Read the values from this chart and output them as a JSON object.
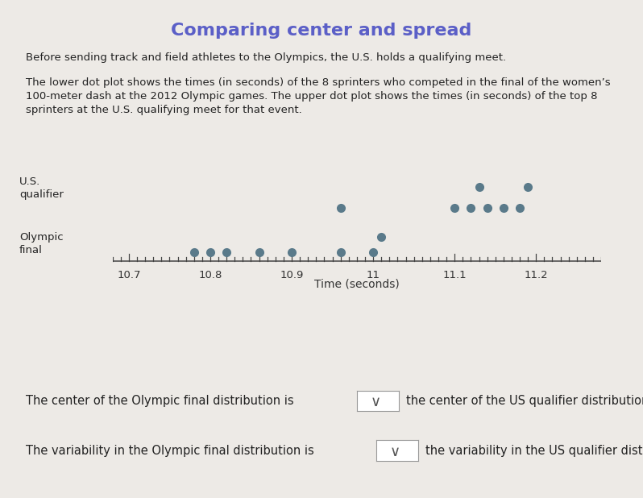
{
  "title": "Comparing center and spread",
  "title_color": "#5b5fc7",
  "subtitle_line1": "Before sending track and field athletes to the Olympics, the U.S. holds a qualifying meet.",
  "subtitle_line2": "The lower dot plot shows the times (in seconds) of the 8 sprinters who competed in the final of the women’s",
  "subtitle_line3": "100-meter dash at the 2012 Olympic games. The upper dot plot shows the times (in seconds) of the top 8",
  "subtitle_line4": "sprinters at the U.S. qualifying meet for that event.",
  "olympic_dots": [
    10.78,
    10.8,
    10.82,
    10.86,
    10.9,
    10.96,
    11.0,
    11.01
  ],
  "qualifier_dots": [
    10.96,
    11.1,
    11.12,
    11.13,
    11.14,
    11.16,
    11.18,
    11.19
  ],
  "dot_color": "#5a7a8a",
  "qualifier_bg": "#c8e6c0",
  "olympic_bg": "#c8dce8",
  "xlim": [
    10.68,
    11.28
  ],
  "xticks": [
    10.7,
    10.8,
    10.9,
    11.0,
    11.1,
    11.2
  ],
  "xtick_labels": [
    "10.7",
    "10.8",
    "10.9",
    "11",
    "11.1",
    "11.2"
  ],
  "xlabel": "Time (seconds)",
  "label_us": "U.S.\nqualifier",
  "label_olympic": "Olympic\nfinal",
  "footer1": "The center of the Olympic final distribution is",
  "footer1b": "the center of the US qualifier distribution.",
  "footer2": "The variability in the Olympic final distribution is",
  "footer2b": "the variability in the US qualifier distribution.",
  "bg_color": "#edeae6"
}
